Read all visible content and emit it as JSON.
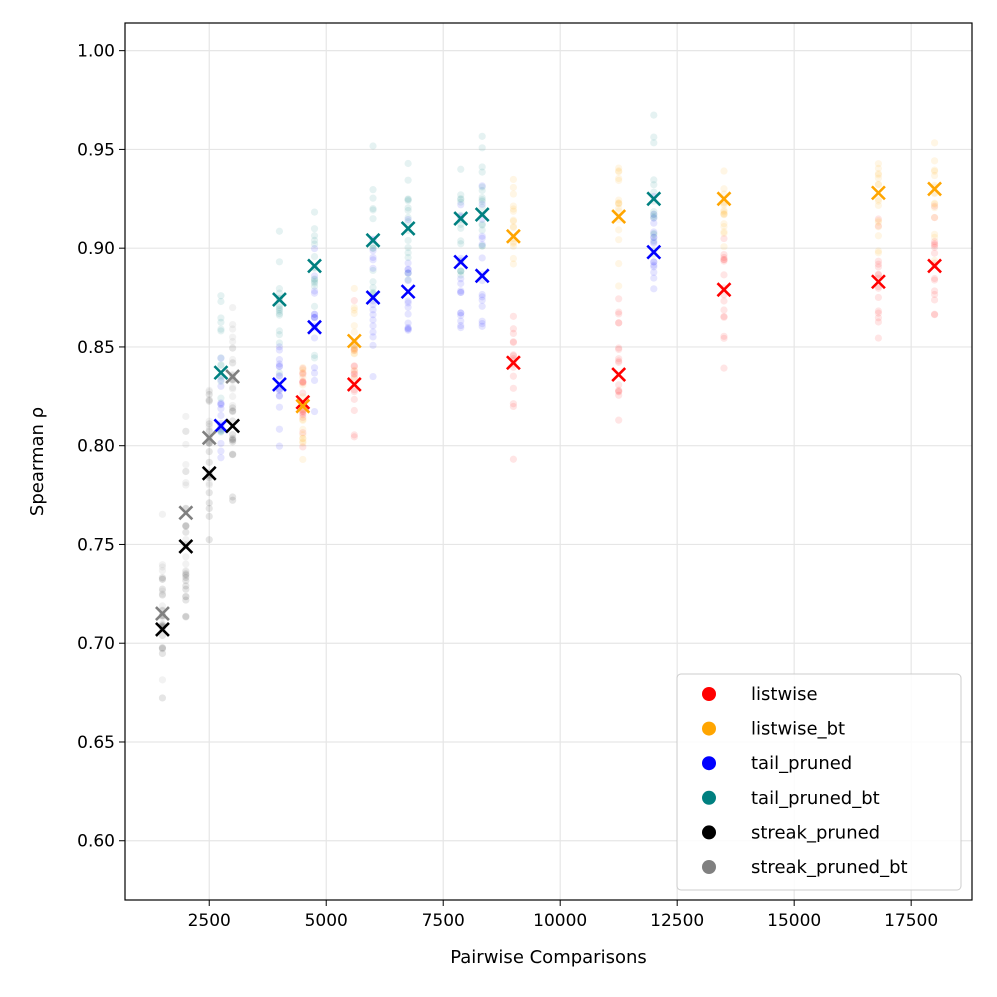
{
  "chart_data": {
    "type": "scatter",
    "xlabel": "Pairwise Comparisons",
    "ylabel": "Spearman ρ",
    "xlim": [
      700,
      18800
    ],
    "ylim": [
      0.57,
      1.014
    ],
    "xticks": [
      2500,
      5000,
      7500,
      10000,
      12500,
      15000,
      17500
    ],
    "xtick_labels": [
      "2500",
      "5000",
      "7500",
      "10000",
      "12500",
      "15000",
      "17500"
    ],
    "yticks": [
      0.6,
      0.65,
      0.7,
      0.75,
      0.8,
      0.85,
      0.9,
      0.95,
      1.0
    ],
    "ytick_labels": [
      "0.60",
      "0.65",
      "0.70",
      "0.75",
      "0.80",
      "0.85",
      "0.90",
      "0.95",
      "1.00"
    ],
    "grid": true,
    "legend_position": "lower-right",
    "series": [
      {
        "name": "listwise",
        "color": "#ff0000",
        "mean_x": [
          4500,
          5600,
          9000,
          11250,
          13500,
          16800,
          18000
        ],
        "mean_y": [
          0.822,
          0.831,
          0.842,
          0.836,
          0.879,
          0.883,
          0.891
        ],
        "spread": [
          0.03,
          0.04,
          0.04,
          0.05,
          0.04,
          0.03,
          0.03
        ]
      },
      {
        "name": "listwise_bt",
        "color": "#ffa500",
        "mean_x": [
          4500,
          5600,
          9000,
          11250,
          13500,
          16800,
          18000
        ],
        "mean_y": [
          0.82,
          0.853,
          0.906,
          0.916,
          0.925,
          0.928,
          0.93
        ],
        "spread": [
          0.03,
          0.03,
          0.03,
          0.03,
          0.03,
          0.03,
          0.03
        ]
      },
      {
        "name": "tail_pruned",
        "color": "#0000ff",
        "mean_x": [
          2750,
          4000,
          4750,
          6000,
          6750,
          7875,
          8333,
          12000
        ],
        "mean_y": [
          0.81,
          0.831,
          0.86,
          0.875,
          0.878,
          0.893,
          0.886,
          0.898
        ],
        "spread": [
          0.03,
          0.04,
          0.04,
          0.04,
          0.04,
          0.04,
          0.04,
          0.03
        ]
      },
      {
        "name": "tail_pruned_bt",
        "color": "#008080",
        "mean_x": [
          2750,
          4000,
          4750,
          6000,
          6750,
          7875,
          8333,
          12000
        ],
        "mean_y": [
          0.837,
          0.874,
          0.891,
          0.904,
          0.91,
          0.915,
          0.917,
          0.925
        ],
        "spread": [
          0.04,
          0.04,
          0.04,
          0.04,
          0.04,
          0.04,
          0.04,
          0.04
        ]
      },
      {
        "name": "streak_pruned",
        "color": "#000000",
        "mean_x": [
          1500,
          2000,
          2500,
          3000
        ],
        "mean_y": [
          0.707,
          0.749,
          0.786,
          0.81
        ],
        "spread": [
          0.05,
          0.05,
          0.04,
          0.04
        ]
      },
      {
        "name": "streak_pruned_bt",
        "color": "#808080",
        "mean_x": [
          1500,
          2000,
          2500,
          3000
        ],
        "mean_y": [
          0.715,
          0.766,
          0.804,
          0.835
        ],
        "spread": [
          0.05,
          0.05,
          0.04,
          0.04
        ]
      }
    ]
  }
}
